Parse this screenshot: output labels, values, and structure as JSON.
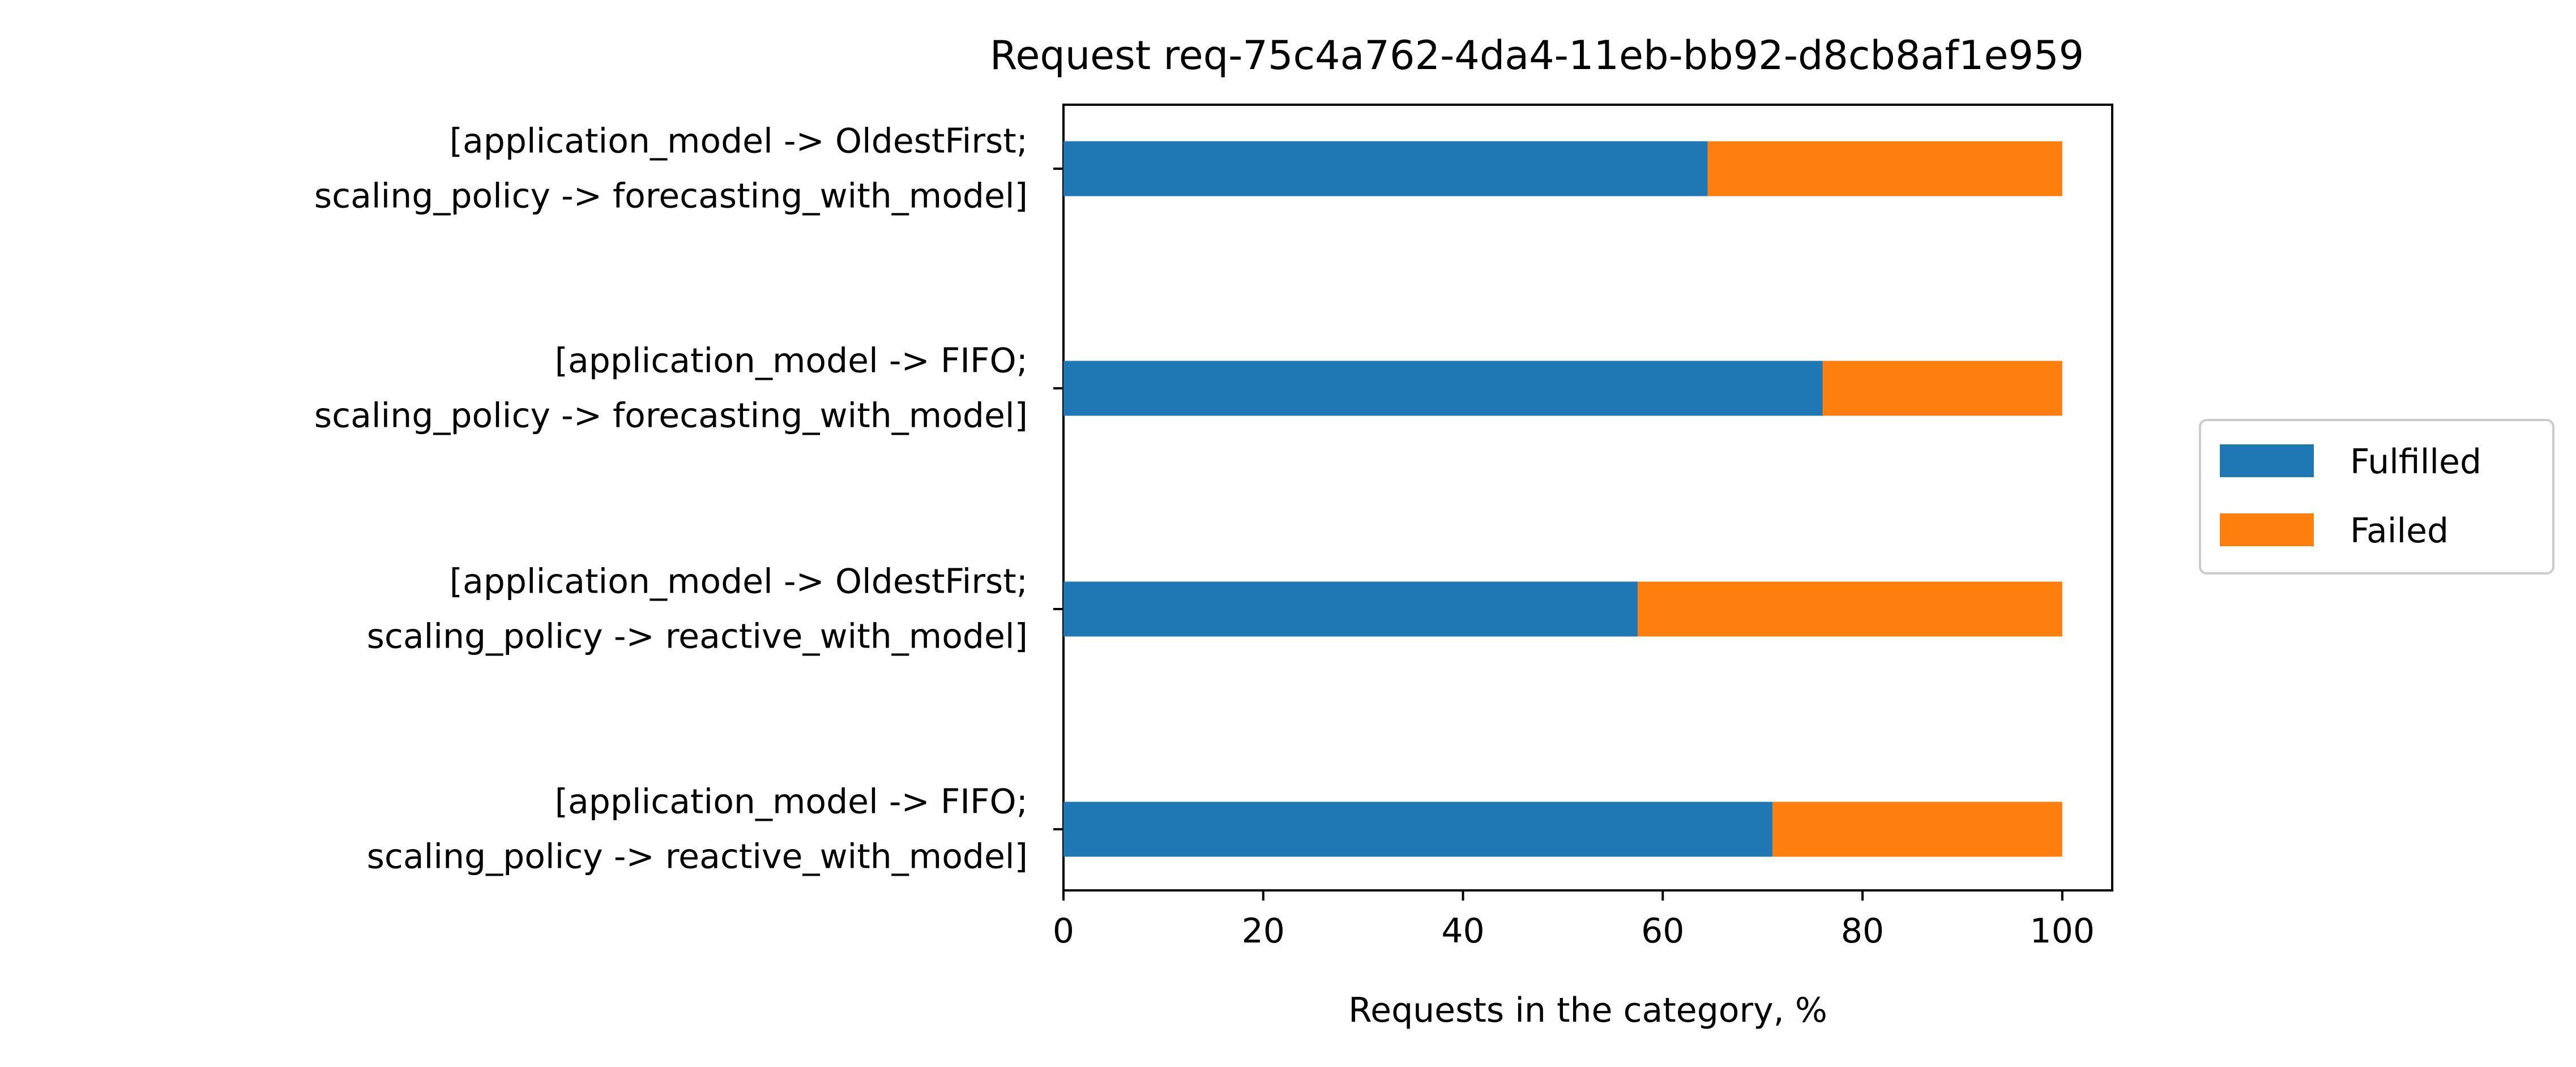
{
  "chart_data": {
    "type": "bar",
    "orientation": "horizontal",
    "stacked": true,
    "title": "Request req-75c4a762-4da4-11eb-bb92-d8cb8af1e959",
    "xlabel": "Requests in the category, %",
    "ylabel": "",
    "xlim": [
      0,
      105
    ],
    "xticks": [
      0,
      20,
      40,
      60,
      80,
      100
    ],
    "grid": false,
    "legend_position": "right",
    "categories": [
      [
        "[application_model -> OldestFirst;",
        "scaling_policy -> forecasting_with_model]"
      ],
      [
        "[application_model -> FIFO;",
        "scaling_policy -> forecasting_with_model]"
      ],
      [
        "[application_model -> OldestFirst;",
        "scaling_policy -> reactive_with_model]"
      ],
      [
        "[application_model -> FIFO;",
        "scaling_policy -> reactive_with_model]"
      ]
    ],
    "series": [
      {
        "name": "Fulfilled",
        "color": "#1f77b4",
        "values": [
          64.5,
          76.0,
          57.5,
          71.0
        ]
      },
      {
        "name": "Failed",
        "color": "#ff7f0e",
        "values": [
          35.5,
          24.0,
          42.5,
          29.0
        ]
      }
    ]
  }
}
